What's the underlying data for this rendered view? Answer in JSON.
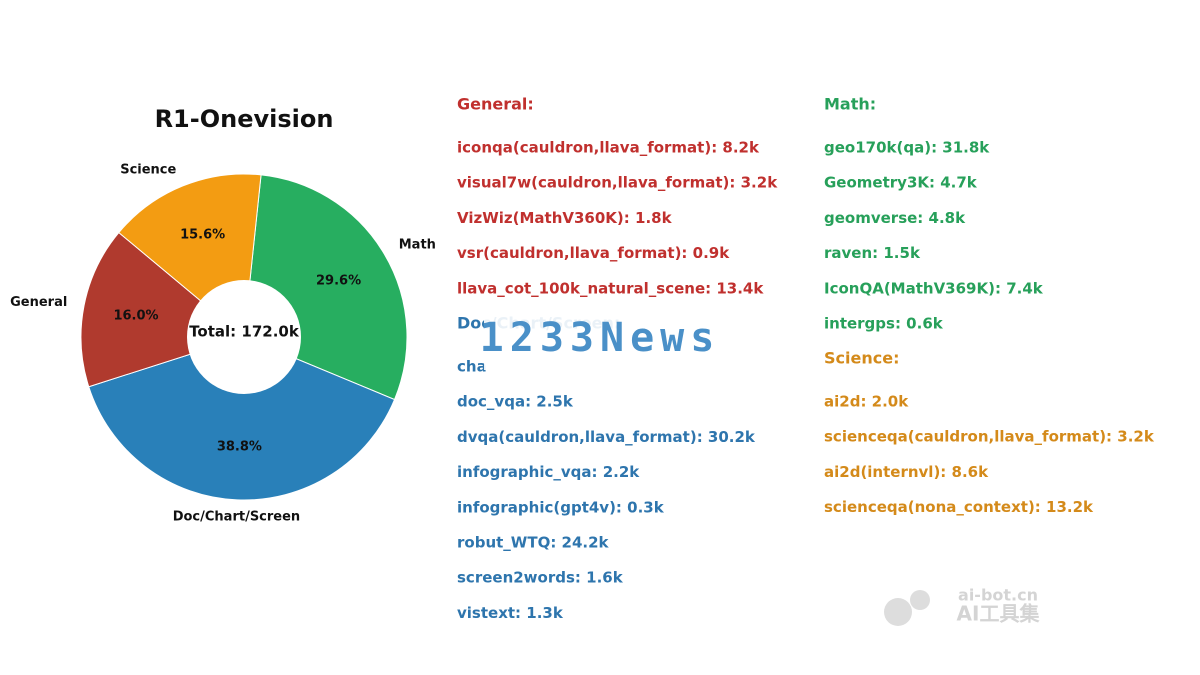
{
  "chart_data": {
    "type": "donut",
    "title": "R1-Onevision",
    "center_label": "Total: 172.0k",
    "categories": [
      "Math",
      "Doc/Chart/Screen",
      "General",
      "Science"
    ],
    "values": [
      29.6,
      38.8,
      16.0,
      15.6
    ],
    "value_labels": [
      "29.6%",
      "38.8%",
      "16.0%",
      "15.6%"
    ],
    "colors": [
      "#27ae60",
      "#2980b9",
      "#b03a2e",
      "#f39c12"
    ],
    "legend": {
      "groups": [
        {
          "title": "General:",
          "color": "#c0302e",
          "items": [
            "iconqa(cauldron,llava_format): 8.2k",
            "visual7w(cauldron,llava_format): 3.2k",
            "VizWiz(MathV360K): 1.8k",
            "vsr(cauldron,llava_format): 0.9k",
            "llava_cot_100k_natural_scene: 13.4k"
          ]
        },
        {
          "title": "Doc/Chart/Screen:",
          "color": "#2e75ad",
          "items": [
            "cha",
            "doc_vqa: 2.5k",
            "dvqa(cauldron,llava_format): 30.2k",
            "infographic_vqa: 2.2k",
            "infographic(gpt4v): 0.3k",
            "robut_WTQ: 24.2k",
            "screen2words: 1.6k",
            "vistext: 1.3k"
          ]
        },
        {
          "title": "Math:",
          "color": "#27a05a",
          "items": [
            "geo170k(qa): 31.8k",
            "Geometry3K: 4.7k",
            "geomverse: 4.8k",
            "raven: 1.5k",
            "IconQA(MathV369K): 7.4k",
            "intergps: 0.6k"
          ]
        },
        {
          "title": "Science:",
          "color": "#d48a1a",
          "items": [
            "ai2d: 2.0k",
            "scienceqa(cauldron,llava_format): 3.2k",
            "ai2d(internvl): 8.6k",
            "scienceqa(nona_context): 13.2k"
          ]
        }
      ]
    },
    "watermarks": [
      "1233News",
      "ai-bot.cn",
      "AI工具集"
    ]
  }
}
